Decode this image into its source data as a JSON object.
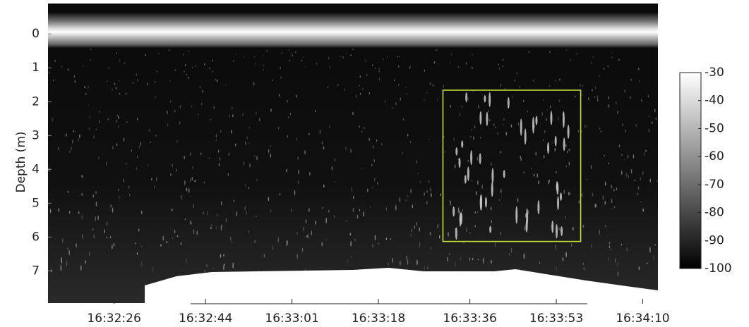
{
  "chart_data": {
    "type": "echogram",
    "y_label": "Depth (m)",
    "xlim": [
      59533,
      59653
    ],
    "xticks": [
      {
        "value": 59546,
        "label": "16:32:26"
      },
      {
        "value": 59564,
        "label": "16:32:44"
      },
      {
        "value": 59581,
        "label": "16:33:01"
      },
      {
        "value": 59598,
        "label": "16:33:18"
      },
      {
        "value": 59616,
        "label": "16:33:36"
      },
      {
        "value": 59633,
        "label": "16:33:53"
      },
      {
        "value": 59650,
        "label": "16:34:10"
      }
    ],
    "ylim": [
      7.95,
      -0.9
    ],
    "yticks": [
      0,
      1,
      2,
      3,
      4,
      5,
      6,
      7
    ],
    "colorbar": {
      "lim": [
        -100,
        -30
      ],
      "ticks": [
        -30,
        -40,
        -50,
        -60,
        -70,
        -80,
        -90,
        -100
      ]
    },
    "box": {
      "x": [
        59610.7,
        59637.8
      ],
      "y": [
        1.66,
        6.13
      ],
      "color": "#c8e03a"
    }
  }
}
